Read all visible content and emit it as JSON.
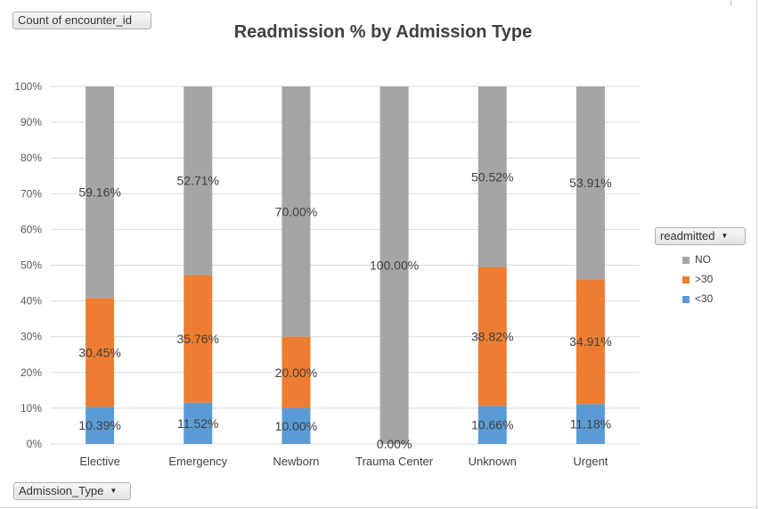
{
  "pivot_buttons": {
    "values_field": "Count of encounter_id",
    "axis_field": "Admission_Type",
    "legend_field": "readmitted",
    "dropdown_icon": "triangle-down-icon"
  },
  "chart_data": {
    "type": "bar",
    "stacked": "percent",
    "title": "Readmission % by Admission Type",
    "xlabel": "",
    "ylabel": "",
    "ylim": [
      0,
      100
    ],
    "y_ticks": [
      "0%",
      "10%",
      "20%",
      "30%",
      "40%",
      "50%",
      "60%",
      "70%",
      "80%",
      "90%",
      "100%"
    ],
    "grid": true,
    "legend_position": "right",
    "categories": [
      "Elective",
      "Emergency",
      "Newborn",
      "Trauma Center",
      "Unknown",
      "Urgent"
    ],
    "series": [
      {
        "name": "<30",
        "color": "#5b9bd5",
        "values": [
          10.39,
          11.52,
          10.0,
          0.0,
          10.66,
          11.18
        ],
        "labels": [
          "10.39%",
          "11.52%",
          "10.00%",
          "0.00%",
          "10.66%",
          "11.18%"
        ]
      },
      {
        "name": ">30",
        "color": "#ed7d31",
        "values": [
          30.45,
          35.76,
          20.0,
          0.0,
          38.82,
          34.91
        ],
        "labels": [
          "30.45%",
          "35.76%",
          "20.00%",
          "",
          "38.82%",
          "34.91%"
        ]
      },
      {
        "name": "NO",
        "color": "#a5a5a5",
        "values": [
          59.16,
          52.71,
          70.0,
          100.0,
          50.52,
          53.91
        ],
        "labels": [
          "59.16%",
          "52.71%",
          "70.00%",
          "100.00%",
          "50.52%",
          "53.91%"
        ]
      }
    ],
    "legend_order": [
      "NO",
      ">30",
      "<30"
    ]
  }
}
